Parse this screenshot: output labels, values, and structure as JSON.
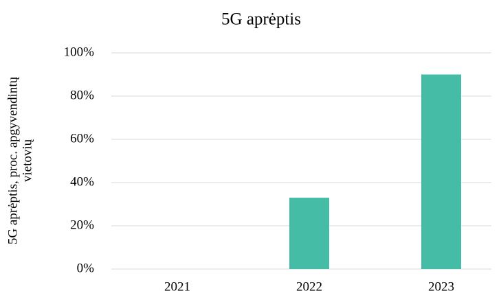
{
  "chart_data": {
    "type": "bar",
    "title": "5G aprėptis",
    "ylabel": [
      "5G aprėptis, proc. apgyvendintų",
      "vietovių"
    ],
    "categories": [
      "2021",
      "2022",
      "2023"
    ],
    "values": [
      0,
      33,
      90
    ],
    "color": "#45bda6",
    "ylim": [
      0,
      100
    ],
    "yticks": [
      {
        "value": 0,
        "label": "0%"
      },
      {
        "value": 20,
        "label": "20%"
      },
      {
        "value": 40,
        "label": "40%"
      },
      {
        "value": 60,
        "label": "60%"
      },
      {
        "value": 80,
        "label": "80%"
      },
      {
        "value": 100,
        "label": "100%"
      }
    ],
    "grid": true
  }
}
